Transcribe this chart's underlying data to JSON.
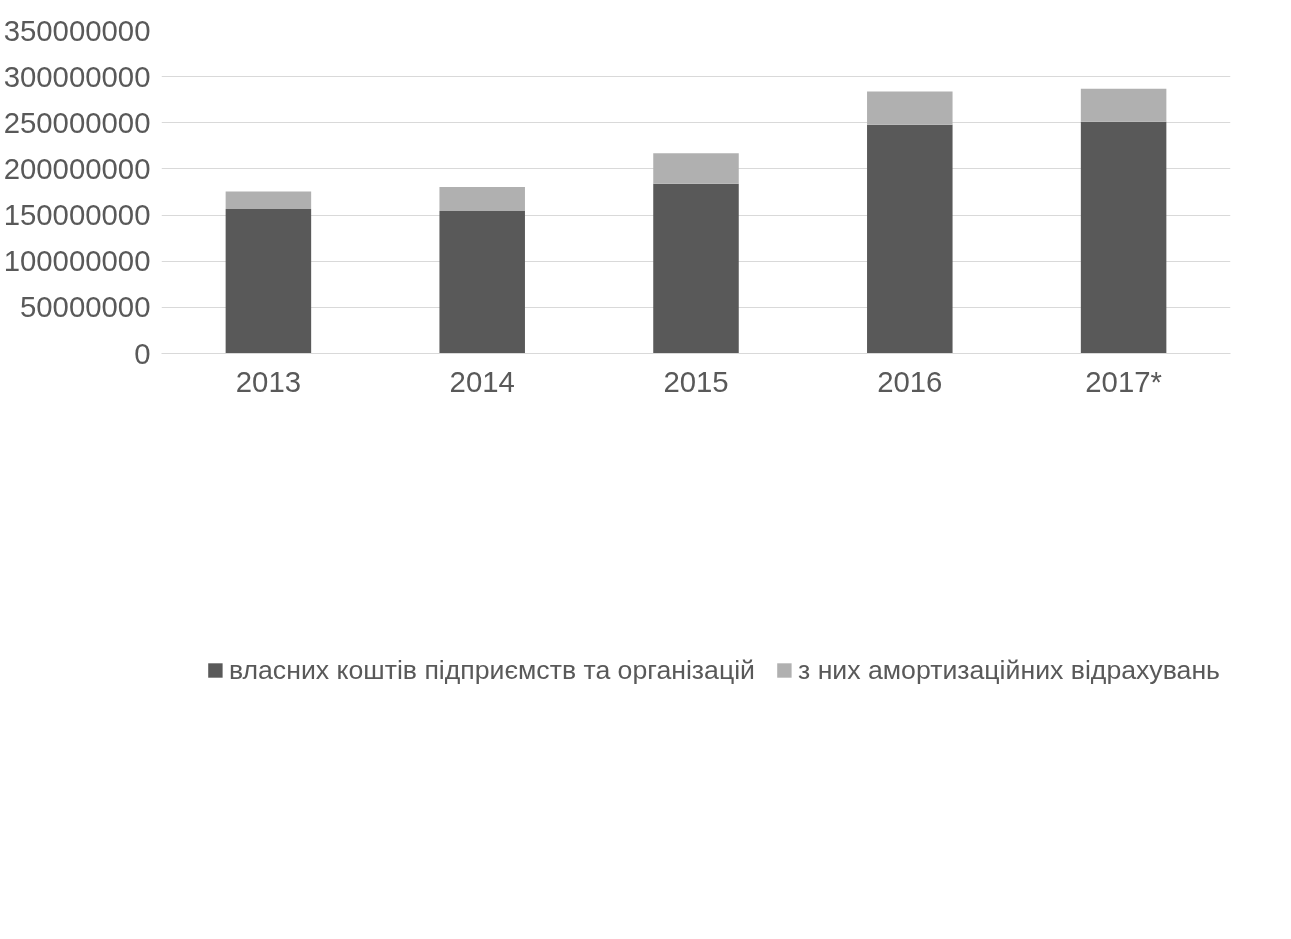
{
  "chart_data": {
    "type": "bar",
    "stacked": true,
    "categories": [
      "2013",
      "2014",
      "2015",
      "2016",
      "2017*"
    ],
    "series": [
      {
        "name": "власних коштів підприємств та організацій",
        "color": "#595959",
        "values": [
          156500000,
          154500000,
          184000000,
          248000000,
          251000000
        ]
      },
      {
        "name": "з них амортизаційних відрахувань",
        "color": "#b0b0b0",
        "values": [
          19000000,
          26000000,
          33000000,
          36000000,
          36000000
        ]
      }
    ],
    "ylim": [
      0,
      350000000
    ],
    "yticks": [
      0,
      50000000,
      100000000,
      150000000,
      200000000,
      250000000,
      300000000,
      350000000
    ],
    "grid": "y",
    "legend": "bottom"
  }
}
